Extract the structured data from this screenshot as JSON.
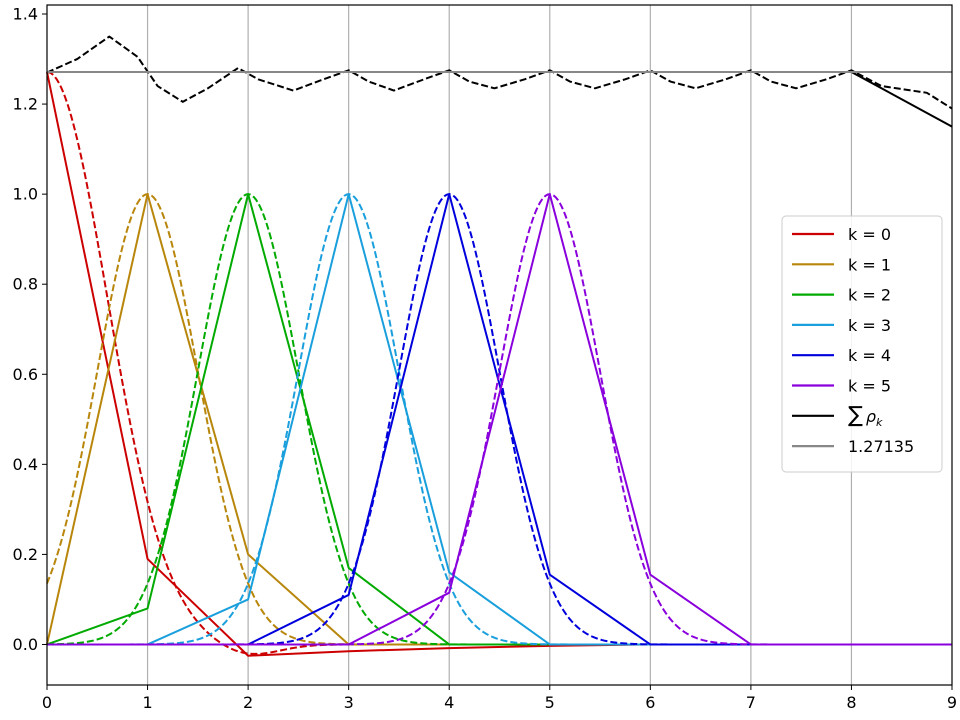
{
  "chart_data": {
    "type": "line",
    "title": "",
    "xlabel": "",
    "ylabel": "",
    "xlim": [
      0,
      9
    ],
    "ylim": [
      -0.09,
      1.42
    ],
    "xticks": [
      0,
      1,
      2,
      3,
      4,
      5,
      6,
      7,
      8,
      9
    ],
    "yticks": [
      0.0,
      0.2,
      0.4,
      0.6,
      0.8,
      1.0,
      1.2,
      1.4
    ],
    "xtick_labels": [
      "0",
      "1",
      "2",
      "3",
      "4",
      "5",
      "6",
      "7",
      "8",
      "9"
    ],
    "ytick_labels": [
      "0.0",
      "0.2",
      "0.4",
      "0.6",
      "0.8",
      "1.0",
      "1.2",
      "1.4"
    ],
    "grid": "vertical only",
    "legend_position": "center-right",
    "series": [
      {
        "name": "k = 0",
        "color": "#cc0000",
        "style": "solid",
        "x": [
          0,
          1,
          2,
          3,
          4,
          5,
          6,
          7,
          8,
          9
        ],
        "y": [
          1.27135,
          0.19,
          -0.025,
          -0.015,
          -0.008,
          -0.003,
          0,
          0,
          0,
          0
        ]
      },
      {
        "name": "k = 0",
        "color": "#cc0000",
        "style": "dashed",
        "gaussian_height": 1.27135,
        "gaussian_sigma": 0.6,
        "gaussian_center": 0,
        "dip": true
      },
      {
        "name": "k = 1",
        "color": "#b8860b",
        "style": "solid",
        "x": [
          0,
          1,
          2,
          3,
          4,
          5,
          6,
          7,
          8,
          9
        ],
        "y": [
          0,
          1.0,
          0.2,
          0,
          0,
          0,
          0,
          0,
          0,
          0
        ]
      },
      {
        "name": "k = 1",
        "color": "#b8860b",
        "style": "dashed",
        "gaussian_center": 1,
        "gaussian_sigma": 0.5
      },
      {
        "name": "k = 2",
        "color": "#00aa00",
        "style": "solid",
        "x": [
          0,
          1,
          2,
          3,
          4,
          5,
          6,
          7,
          8,
          9
        ],
        "y": [
          0,
          0.08,
          1.0,
          0.17,
          0,
          0,
          0,
          0,
          0,
          0
        ]
      },
      {
        "name": "k = 2",
        "color": "#00aa00",
        "style": "dashed",
        "gaussian_center": 2,
        "gaussian_sigma": 0.5
      },
      {
        "name": "k = 3",
        "color": "#1a9fdd",
        "style": "solid",
        "x": [
          0,
          1,
          2,
          3,
          4,
          5,
          6,
          7,
          8,
          9
        ],
        "y": [
          0,
          0,
          0.1,
          1.0,
          0.16,
          0,
          0,
          0,
          0,
          0
        ]
      },
      {
        "name": "k = 3",
        "color": "#1a9fdd",
        "style": "dashed",
        "gaussian_center": 3,
        "gaussian_sigma": 0.5
      },
      {
        "name": "k = 4",
        "color": "#0000dd",
        "style": "solid",
        "x": [
          0,
          1,
          2,
          3,
          4,
          5,
          6,
          7,
          8,
          9
        ],
        "y": [
          0,
          0,
          0,
          0.11,
          1.0,
          0.155,
          0,
          0,
          0,
          0
        ]
      },
      {
        "name": "k = 4",
        "color": "#0000dd",
        "style": "dashed",
        "gaussian_center": 4,
        "gaussian_sigma": 0.5
      },
      {
        "name": "k = 5",
        "color": "#8a00dd",
        "style": "solid",
        "x": [
          0,
          1,
          2,
          3,
          4,
          5,
          6,
          7,
          8,
          9
        ],
        "y": [
          0,
          0,
          0,
          0,
          0.115,
          1.0,
          0.155,
          0,
          0,
          0
        ]
      },
      {
        "name": "k = 5",
        "color": "#8a00dd",
        "style": "dashed",
        "gaussian_center": 5,
        "gaussian_sigma": 0.5
      },
      {
        "name": "∑ρk",
        "color": "#000000",
        "style": "solid",
        "x": [
          0,
          1,
          2,
          3,
          4,
          5,
          6,
          7,
          8,
          9
        ],
        "y": [
          1.27135,
          1.27135,
          1.27135,
          1.27135,
          1.27135,
          1.27135,
          1.27135,
          1.27135,
          1.27135,
          1.15
        ]
      },
      {
        "name": "∑ρk",
        "color": "#000000",
        "style": "dashed",
        "x": [
          0,
          0.3,
          0.62,
          0.9,
          1.1,
          1.35,
          1.6,
          1.9,
          2.1,
          2.45,
          2.75,
          3.0,
          3.2,
          3.45,
          3.75,
          4.0,
          4.2,
          4.45,
          4.75,
          5.0,
          5.2,
          5.45,
          5.75,
          6.0,
          6.2,
          6.45,
          6.75,
          7.0,
          7.2,
          7.45,
          7.75,
          8.0,
          8.3,
          8.6,
          8.75,
          9.0
        ],
        "y": [
          1.27,
          1.3,
          1.35,
          1.305,
          1.24,
          1.205,
          1.235,
          1.28,
          1.255,
          1.23,
          1.255,
          1.275,
          1.25,
          1.23,
          1.255,
          1.275,
          1.25,
          1.235,
          1.255,
          1.275,
          1.25,
          1.235,
          1.255,
          1.275,
          1.25,
          1.235,
          1.255,
          1.275,
          1.25,
          1.235,
          1.255,
          1.275,
          1.24,
          1.23,
          1.225,
          1.19
        ]
      },
      {
        "name": "1.27135",
        "color": "#888888",
        "style": "solid",
        "x": [
          0,
          9
        ],
        "y": [
          1.27135,
          1.27135
        ]
      }
    ],
    "legend": [
      {
        "label": "k = 0",
        "color": "#cc0000"
      },
      {
        "label": "k = 1",
        "color": "#b8860b"
      },
      {
        "label": "k = 2",
        "color": "#00aa00"
      },
      {
        "label": "k = 3",
        "color": "#1a9fdd"
      },
      {
        "label": "k = 4",
        "color": "#0000dd"
      },
      {
        "label": "k = 5",
        "color": "#8a00dd"
      },
      {
        "label": "∑ρk",
        "color": "#000000",
        "math": true
      },
      {
        "label": "1.27135",
        "color": "#888888"
      }
    ]
  }
}
